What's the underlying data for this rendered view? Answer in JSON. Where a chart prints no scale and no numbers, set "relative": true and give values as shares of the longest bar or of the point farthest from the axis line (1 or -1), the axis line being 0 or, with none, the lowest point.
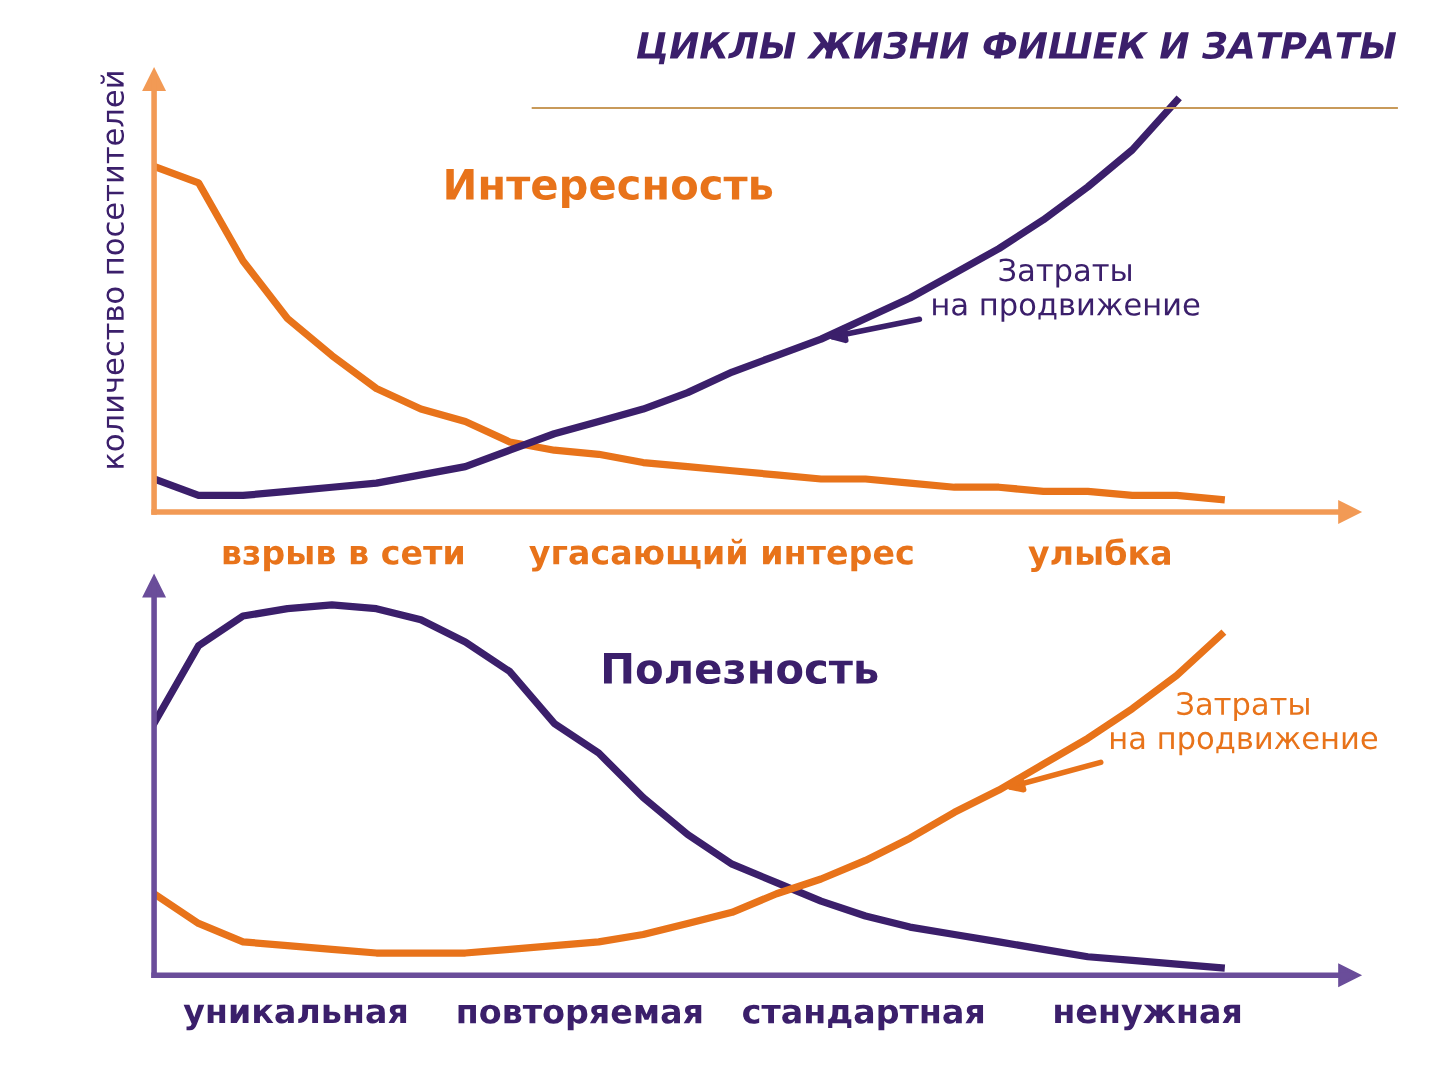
{
  "chart_data": [
    {
      "type": "line",
      "title": "ЦИКЛЫ ЖИЗНИ ФИШЕК И ЗАТРАТЫ",
      "subtitle": "Интересность",
      "ylabel": "количество посетителей",
      "relative": true,
      "marker": "none",
      "line_style": "solid",
      "categories": [
        null,
        null,
        null,
        null,
        null,
        null,
        null,
        null,
        null,
        null,
        null,
        null,
        null,
        null,
        null,
        null,
        null,
        null,
        null,
        null,
        null,
        null,
        null,
        null,
        null
      ],
      "series": [
        {
          "color": "#e8731a",
          "values": [
            0.84,
            0.8,
            0.61,
            0.47,
            0.38,
            0.3,
            0.25,
            0.22,
            0.17,
            0.15,
            0.14,
            0.12,
            0.11,
            0.1,
            0.09,
            0.08,
            0.08,
            0.07,
            0.06,
            0.06,
            0.05,
            0.05,
            0.04,
            0.04,
            0.03
          ]
        },
        {
          "color": "#3b1f6b",
          "values": [
            0.08,
            0.04,
            0.04,
            0.05,
            0.06,
            0.07,
            0.09,
            0.11,
            0.15,
            0.19,
            0.22,
            0.25,
            0.29,
            0.34,
            0.38,
            0.42,
            0.47,
            0.52,
            0.58,
            0.64,
            0.71,
            0.79,
            0.88,
            1,
            null
          ]
        }
      ],
      "annotations": [
        "Затраты\nна продвижение",
        "взрыв в сети",
        "угасающий интерес",
        "улыбка"
      ]
    },
    {
      "type": "line",
      "subtitle": "Полезность",
      "relative": true,
      "marker": "none",
      "line_style": "solid",
      "categories": [
        null,
        null,
        null,
        null,
        null,
        null,
        null,
        null,
        null,
        null,
        null,
        null,
        null,
        null,
        null,
        null,
        null,
        null,
        null,
        null,
        null,
        null,
        null,
        null,
        null
      ],
      "series": [
        {
          "color": "#3b1f6b",
          "values": [
            0.68,
            0.89,
            0.97,
            0.99,
            1,
            0.99,
            0.96,
            0.9,
            0.82,
            0.68,
            0.6,
            0.48,
            0.38,
            0.3,
            0.25,
            0.2,
            0.16,
            0.13,
            0.11,
            0.09,
            0.07,
            0.05,
            0.04,
            0.03,
            0.02
          ]
        },
        {
          "color": "#e8731a",
          "values": [
            0.22,
            0.14,
            0.09,
            0.08,
            0.07,
            0.06,
            0.06,
            0.06,
            0.07,
            0.08,
            0.09,
            0.11,
            0.14,
            0.17,
            0.22,
            0.26,
            0.31,
            0.37,
            0.44,
            0.5,
            0.57,
            0.64,
            0.72,
            0.81,
            0.92
          ]
        }
      ],
      "annotations": [
        "Затраты\nна продвижение",
        "уникальная",
        "повторяемая",
        "стандартная",
        "ненужная"
      ]
    }
  ]
}
